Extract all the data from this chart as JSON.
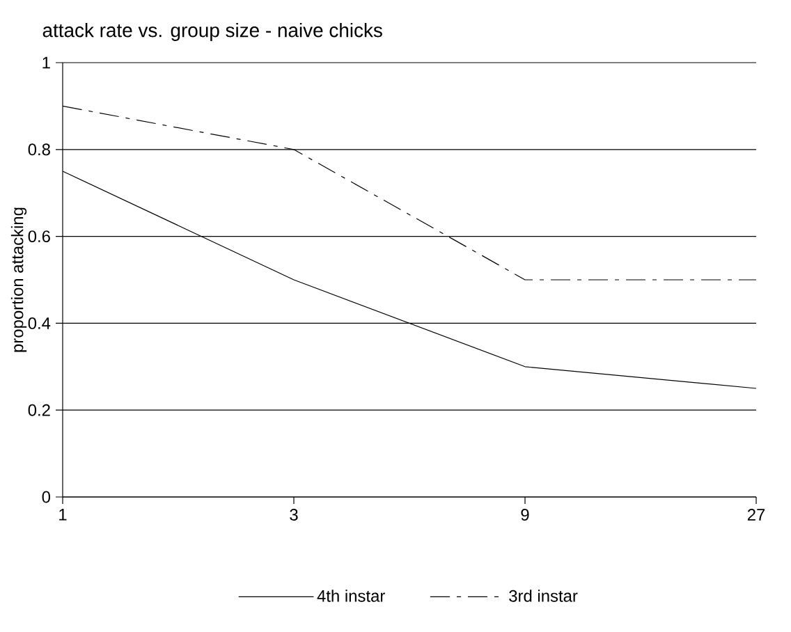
{
  "chart_data": {
    "type": "line",
    "title": "attack rate vs. group size - naive chicks",
    "ylabel": "proportion attacking",
    "categories": [
      "1",
      "3",
      "9",
      "27"
    ],
    "series": [
      {
        "name": "4th instar",
        "color": "#000000",
        "line_style": "solid",
        "values": [
          0.75,
          0.5,
          0.3,
          0.25
        ]
      },
      {
        "name": "3rd instar",
        "color": "#000000",
        "line_style": "dashed",
        "values": [
          0.9,
          0.8,
          0.5,
          0.5
        ]
      }
    ],
    "ylim": [
      0,
      1
    ],
    "yticks": [
      0,
      0.2,
      0.4,
      0.6,
      0.8,
      1
    ],
    "grid": "y",
    "legend": "bottom",
    "marker": "none"
  }
}
